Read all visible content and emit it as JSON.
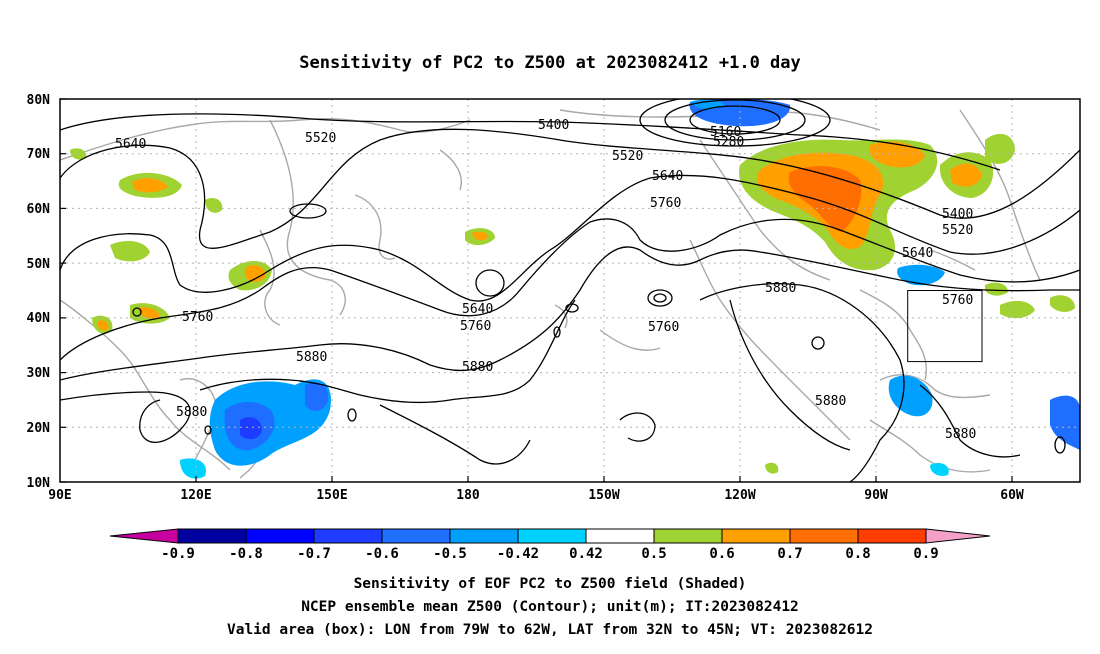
{
  "title": "Sensitivity of PC2 to Z500 at 2023082412 +1.0 day",
  "axes": {
    "lat_labels": [
      "80N",
      "70N",
      "60N",
      "50N",
      "40N",
      "30N",
      "20N",
      "10N"
    ],
    "lon_labels": [
      "90E",
      "120E",
      "150E",
      "180",
      "150W",
      "120W",
      "90W",
      "60W"
    ]
  },
  "contour_labels": [
    {
      "text": "5640"
    },
    {
      "text": "5520"
    },
    {
      "text": "5400"
    },
    {
      "text": "5160"
    },
    {
      "text": "5280"
    },
    {
      "text": "5520"
    },
    {
      "text": "5640"
    },
    {
      "text": "5760"
    },
    {
      "text": "5400"
    },
    {
      "text": "5520"
    },
    {
      "text": "5640"
    },
    {
      "text": "5760"
    },
    {
      "text": "5640"
    },
    {
      "text": "5760"
    },
    {
      "text": "5760"
    },
    {
      "text": "5760"
    },
    {
      "text": "5880"
    },
    {
      "text": "5880"
    },
    {
      "text": "5880"
    },
    {
      "text": "5880"
    },
    {
      "text": "5880"
    },
    {
      "text": "5880"
    }
  ],
  "colorbar": {
    "labels": [
      "-0.9",
      "-0.8",
      "-0.7",
      "-0.6",
      "-0.5",
      "-0.42",
      "0.42",
      "0.5",
      "0.6",
      "0.7",
      "0.8",
      "0.9"
    ],
    "colors": [
      "#0000a0",
      "#0000ff",
      "#1e3cff",
      "#1e6eff",
      "#00a0ff",
      "#00d2ff",
      "#ffffff",
      "#a0d232",
      "#ffa000",
      "#ff6e00",
      "#ff3c00",
      "#ff0000"
    ],
    "under_color": "#c800a0",
    "over_color": "#f5a0c8"
  },
  "captions": {
    "line1": "Sensitivity of EOF PC2 to Z500 field (Shaded)",
    "line2": "NCEP ensemble mean Z500 (Contour); unit(m); IT:2023082412",
    "line3": "Valid area (box): LON from 79W to 62W, LAT from 32N to 45N; VT: 2023082612"
  },
  "valid_box": {
    "lon_min": -79,
    "lon_max": -62,
    "lat_min": 32,
    "lat_max": 45
  }
}
